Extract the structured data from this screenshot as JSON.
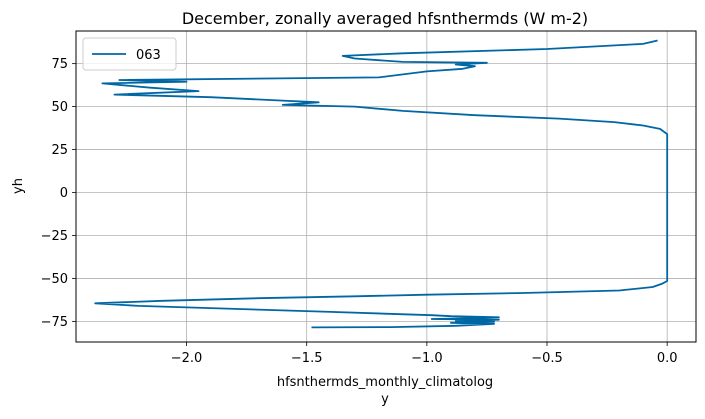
{
  "chart_data": {
    "type": "line",
    "title": "December, zonally averaged hfsnthermds (W m-2)",
    "xlabel": "hfsnthermds_monthly_climatolog\ny",
    "ylabel": "yh",
    "xlim": [
      -2.46,
      0.12
    ],
    "ylim": [
      -87,
      94
    ],
    "xticks": [
      -2.0,
      -1.5,
      -1.0,
      -0.5,
      0.0
    ],
    "xtick_labels": [
      "−2.0",
      "−1.5",
      "−1.0",
      "−0.5",
      "0.0"
    ],
    "yticks": [
      -75,
      -50,
      -25,
      0,
      25,
      50,
      75
    ],
    "ytick_labels": [
      "−75",
      "−50",
      "−25",
      "0",
      "25",
      "50",
      "75"
    ],
    "grid": true,
    "legend_position": "top-left",
    "line_color": "#0067a4",
    "series": [
      {
        "name": "063",
        "points": [
          [
            -1.48,
            -78.5
          ],
          [
            -1.15,
            -78.3
          ],
          [
            -0.88,
            -77.6
          ],
          [
            -0.72,
            -76.4
          ],
          [
            -0.9,
            -75.8
          ],
          [
            -0.72,
            -75.2
          ],
          [
            -0.88,
            -74.8
          ],
          [
            -0.7,
            -74.0
          ],
          [
            -0.98,
            -73.6
          ],
          [
            -0.76,
            -73.0
          ],
          [
            -0.7,
            -72.6
          ],
          [
            -0.9,
            -72.0
          ],
          [
            -0.98,
            -71.4
          ],
          [
            -1.4,
            -69.5
          ],
          [
            -2.2,
            -66.0
          ],
          [
            -2.38,
            -64.5
          ],
          [
            -2.1,
            -63.0
          ],
          [
            -1.7,
            -61.5
          ],
          [
            -1.3,
            -60.4
          ],
          [
            -1.0,
            -59.5
          ],
          [
            -0.6,
            -58.5
          ],
          [
            -0.2,
            -57.0
          ],
          [
            -0.06,
            -55.0
          ],
          [
            -0.02,
            -53.0
          ],
          [
            0.0,
            -51.5
          ],
          [
            0.0,
            0.0
          ],
          [
            0.0,
            34.0
          ],
          [
            -0.03,
            37.0
          ],
          [
            -0.1,
            39.0
          ],
          [
            -0.22,
            41.0
          ],
          [
            -0.45,
            43.0
          ],
          [
            -0.8,
            45.0
          ],
          [
            -1.1,
            47.5
          ],
          [
            -1.3,
            50.0
          ],
          [
            -1.6,
            51.0
          ],
          [
            -1.45,
            52.5
          ],
          [
            -1.6,
            53.5
          ],
          [
            -1.9,
            55.5
          ],
          [
            -2.3,
            57.0
          ],
          [
            -1.95,
            59.0
          ],
          [
            -2.15,
            61.0
          ],
          [
            -2.35,
            63.5
          ],
          [
            -2.0,
            64.5
          ],
          [
            -2.28,
            65.5
          ],
          [
            -1.2,
            67.0
          ],
          [
            -1.0,
            70.5
          ],
          [
            -0.85,
            72.0
          ],
          [
            -0.8,
            73.5
          ],
          [
            -0.88,
            74.5
          ],
          [
            -0.75,
            75.5
          ],
          [
            -1.1,
            76.0
          ],
          [
            -1.3,
            78.0
          ],
          [
            -1.35,
            79.5
          ],
          [
            -1.1,
            81.0
          ],
          [
            -0.5,
            83.5
          ],
          [
            -0.1,
            86.5
          ],
          [
            -0.04,
            88.5
          ]
        ]
      }
    ]
  }
}
